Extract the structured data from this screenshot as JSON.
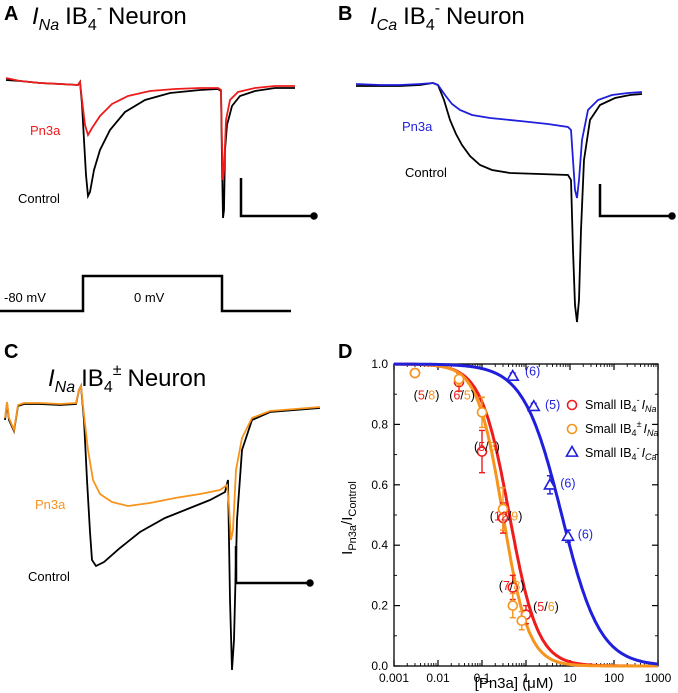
{
  "colors": {
    "red": "#ee1c1c",
    "orange": "#f7941d",
    "blue": "#1f1fdc",
    "black": "#000000"
  },
  "panels": {
    "A": {
      "letter": "A",
      "title_var": "I",
      "title_sub": "Na",
      "title_ib": "IB",
      "title_ib_sub": "4",
      "title_ib_sup": "-",
      "title_rest": "Neuron",
      "label_drug": "Pn3a",
      "label_control": "Control",
      "protocol_hold": "-80 mV",
      "protocol_step": "0 mV"
    },
    "B": {
      "letter": "B",
      "title_var": "I",
      "title_sub": "Ca",
      "title_ib": "IB",
      "title_ib_sub": "4",
      "title_ib_sup": "-",
      "title_rest": "Neuron",
      "label_drug": "Pn3a",
      "label_control": "Control"
    },
    "C": {
      "letter": "C",
      "title_var": "I",
      "title_sub": "Na",
      "title_ib": "IB",
      "title_ib_sub": "4",
      "title_ib_sup": "±",
      "title_rest": "Neuron",
      "label_drug": "Pn3a",
      "label_control": "Control"
    },
    "D": {
      "letter": "D"
    }
  },
  "chart_data": {
    "type": "scatter",
    "xscale": "log",
    "xlim": [
      0.001,
      1000
    ],
    "ylim": [
      0.0,
      1.0
    ],
    "xlabel": "[Pn3a] (μM)",
    "ylabel_main": "I",
    "ylabel_sub": "Pn3a",
    "ylabel_rest": "/I",
    "ylabel_sub2": "Control",
    "x_ticks": [
      "0.001",
      "0.01",
      "0.1",
      "1",
      "10",
      "100",
      "1000"
    ],
    "y_ticks": [
      "0.0",
      "0.2",
      "0.4",
      "0.6",
      "0.8",
      "1.0"
    ],
    "series": [
      {
        "name": "Small IB4- INa",
        "legend_main": "Small IB",
        "legend_sub": "4",
        "legend_sup": "-",
        "legend_var": "I",
        "legend_var_sub": "Na",
        "color": "#ee1c1c",
        "marker": "circle",
        "ic50": 0.42,
        "hill": 1.35,
        "x": [
          0.003,
          0.03,
          0.1,
          0.3,
          0.5,
          1.0
        ],
        "y": [
          0.97,
          0.94,
          0.71,
          0.49,
          0.26,
          0.17
        ],
        "err": [
          0.01,
          0.03,
          0.07,
          0.05,
          0.04,
          0.03
        ]
      },
      {
        "name": "Small IB4± INa",
        "legend_main": "Small IB",
        "legend_sub": "4",
        "legend_sup": "±",
        "legend_var": "I",
        "legend_var_sub": "Na",
        "color": "#f7941d",
        "marker": "circle",
        "ic50": 0.3,
        "hill": 1.5,
        "x": [
          0.003,
          0.03,
          0.1,
          0.3,
          0.5,
          0.8
        ],
        "y": [
          0.97,
          0.95,
          0.84,
          0.52,
          0.2,
          0.15
        ],
        "err": [
          0.01,
          0.02,
          0.05,
          0.07,
          0.04,
          0.03
        ]
      },
      {
        "name": "Small IB4- ICa",
        "legend_main": "Small IB",
        "legend_sub": "4",
        "legend_sup": "-",
        "legend_var": "I",
        "legend_var_sub": "Ca",
        "color": "#1f1fdc",
        "marker": "triangle",
        "ic50": 6.5,
        "hill": 1.0,
        "x": [
          0.5,
          1.5,
          3.5,
          9.0
        ],
        "y": [
          0.96,
          0.86,
          0.6,
          0.43
        ],
        "err": [
          0.01,
          0.01,
          0.03,
          0.02
        ]
      }
    ],
    "annotations": [
      {
        "x": 0.0028,
        "y": 0.895,
        "parts": [
          [
            "(",
            "black"
          ],
          [
            "5",
            "red"
          ],
          [
            "/",
            "black"
          ],
          [
            "8",
            "orange"
          ],
          [
            ")",
            "black"
          ]
        ]
      },
      {
        "x": 0.018,
        "y": 0.895,
        "parts": [
          [
            "(",
            "black"
          ],
          [
            "6",
            "red"
          ],
          [
            "/",
            "black"
          ],
          [
            "5",
            "orange"
          ],
          [
            ")",
            "black"
          ]
        ]
      },
      {
        "x": 0.066,
        "y": 0.725,
        "parts": [
          [
            "(",
            "black"
          ],
          [
            "5",
            "red"
          ],
          [
            "/",
            "black"
          ],
          [
            "8",
            "orange"
          ],
          [
            ")",
            "black"
          ]
        ]
      },
      {
        "x": 0.15,
        "y": 0.495,
        "parts": [
          [
            "(",
            "black"
          ],
          [
            "12",
            "red"
          ],
          [
            "/",
            "black"
          ],
          [
            "9",
            "orange"
          ],
          [
            ")",
            "black"
          ]
        ]
      },
      {
        "x": 0.24,
        "y": 0.265,
        "parts": [
          [
            "(",
            "black"
          ],
          [
            "7",
            "red"
          ],
          [
            "/",
            "black"
          ],
          [
            "8",
            "orange"
          ],
          [
            ")",
            "black"
          ]
        ]
      },
      {
        "x": 1.45,
        "y": 0.195,
        "parts": [
          [
            "(",
            "black"
          ],
          [
            "5",
            "red"
          ],
          [
            "/",
            "black"
          ],
          [
            "6",
            "orange"
          ],
          [
            ")",
            "black"
          ]
        ]
      },
      {
        "x": 0.95,
        "y": 0.975,
        "parts": [
          [
            "(6)",
            "blue"
          ]
        ]
      },
      {
        "x": 2.7,
        "y": 0.865,
        "parts": [
          [
            "(5)",
            "blue"
          ]
        ]
      },
      {
        "x": 6.0,
        "y": 0.605,
        "parts": [
          [
            "(6)",
            "blue"
          ]
        ]
      },
      {
        "x": 15.0,
        "y": 0.435,
        "parts": [
          [
            "(6)",
            "blue"
          ]
        ]
      }
    ]
  }
}
